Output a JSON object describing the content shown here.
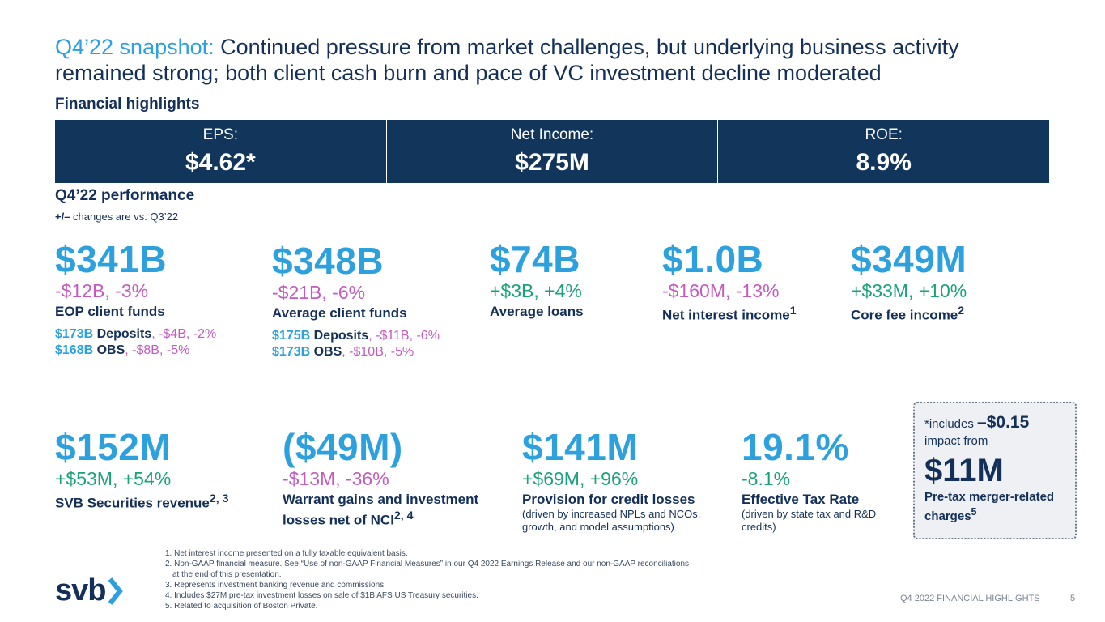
{
  "title": {
    "highlight": "Q4’22 snapshot:",
    "line1": "Continued pressure from market challenges, but underlying business activity",
    "line2": "remained strong; both client cash burn and pace of VC investment decline moderated"
  },
  "financial_highlights": {
    "heading": "Financial highlights",
    "cells": [
      {
        "label": "EPS:",
        "value": "$4.62*"
      },
      {
        "label": "Net Income:",
        "value": "$275M"
      },
      {
        "label": "ROE:",
        "value": "8.9%"
      }
    ]
  },
  "performance": {
    "heading": "Q4’22 performance",
    "subheading_sign": "+/–",
    "subheading_text": " changes are vs. Q3’22"
  },
  "row1": [
    {
      "value": "$341B",
      "change": "-$12B, -3%",
      "label": "EOP client funds",
      "details": [
        {
          "amount": "$173B",
          "name": "Deposits",
          "change": ", -$4B, -2%"
        },
        {
          "amount": "$168B",
          "name": "OBS",
          "change": ", -$8B, -5%"
        }
      ]
    },
    {
      "value": "$348B",
      "change": "-$21B, -6%",
      "label": "Average client funds",
      "details": [
        {
          "amount": "$175B",
          "name": "Deposits",
          "change": ", -$11B, -6%"
        },
        {
          "amount": "$173B",
          "name": "OBS",
          "change": ", -$10B, -5%"
        }
      ]
    },
    {
      "value": "$74B",
      "change": "+$3B, +4%",
      "label": "Average loans"
    },
    {
      "value": "$1.0B",
      "change": "-$160M, -13%",
      "label": "Net interest income",
      "sup": "1"
    },
    {
      "value": "$349M",
      "change": "+$33M, +10%",
      "label": "Core fee income",
      "sup": "2"
    }
  ],
  "row2": [
    {
      "value": "$152M",
      "change": "+$53M, +54%",
      "label": "SVB Securities revenue",
      "sup": "2, 3"
    },
    {
      "value": "($49M)",
      "change": "-$13M, -36%",
      "label1": "Warrant gains and investment",
      "label2": "losses net of NCI",
      "sup": "2, 4"
    },
    {
      "value": "$141M",
      "change": "+$69M, +96%",
      "label": "Provision for credit losses",
      "note": "(driven by increased NPLs and NCOs, growth, and model assumptions)"
    },
    {
      "value": "19.1%",
      "change": "-8.1%",
      "label": "Effective Tax Rate",
      "note": "(driven by state tax and R&D credits)"
    }
  ],
  "callout": {
    "prefix": "*includes ",
    "amount": "–$0.15",
    "line2": "impact from",
    "big": "$11M",
    "label": "Pre-tax merger-related charges",
    "sup": "5"
  },
  "footnotes": [
    "1.  Net interest income presented on a fully taxable equivalent basis.",
    "2.  Non-GAAP financial measure. See “Use of non-GAAP Financial Measures” in our Q4 2022 Earnings Release and our non-GAAP reconciliations",
    "     at the end of this presentation.",
    "3.  Represents investment banking revenue and commissions.",
    "4.  Includes $27M pre-tax investment losses on sale of $1B AFS US Treasury securities.",
    "5.  Related to acquisition of Boston Private."
  ],
  "logo": {
    "text": "svb"
  },
  "footer": {
    "section": "Q4 2022 FINANCIAL HIGHLIGHTS",
    "page": "5"
  },
  "colors": {
    "navy": "#12355b",
    "blue": "#2ca1dd",
    "negative": "#c45bbf",
    "positive": "#1aa37a"
  }
}
